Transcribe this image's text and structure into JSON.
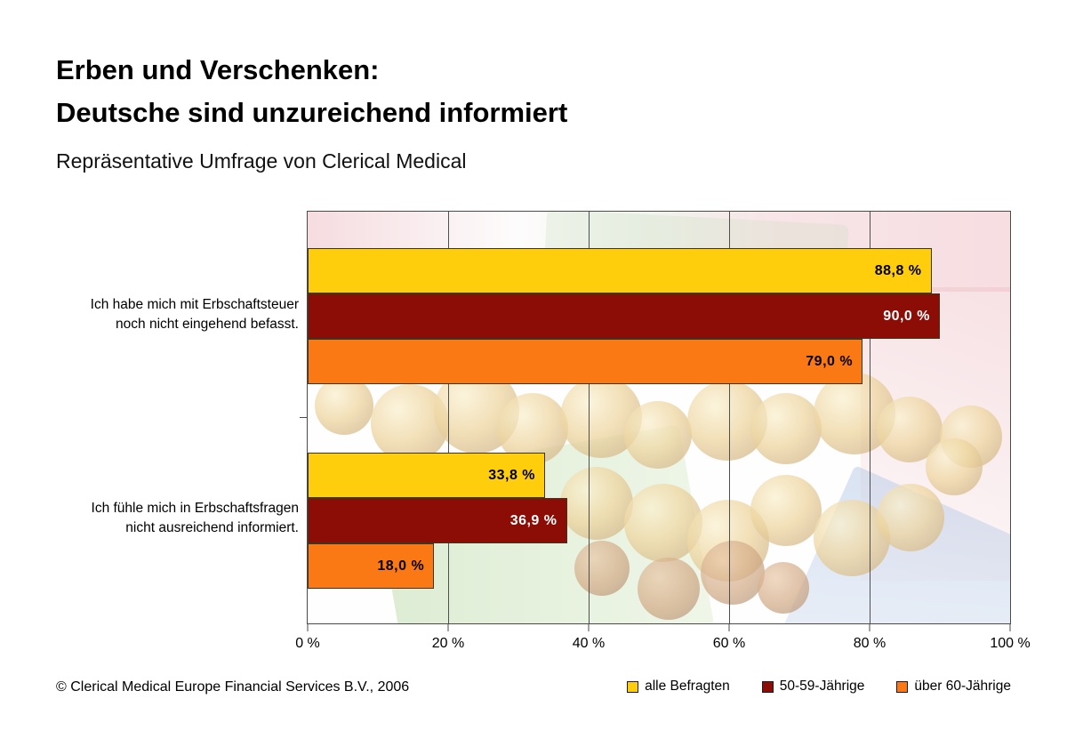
{
  "page": {
    "title_line1": "Erben und Verschenken:",
    "title_line2": "Deutsche sind unzureichend informiert",
    "subtitle": "Repräsentative Umfrage von Clerical Medical",
    "footer": "© Clerical Medical Europe Financial Services B.V., 2006"
  },
  "colors": {
    "series_yellow": "#FECD0C",
    "series_darkred": "#8B0D06",
    "series_orange": "#FA7914",
    "grid": "#4F4F4F",
    "background": "#FFFFFF"
  },
  "chart_data": {
    "type": "bar",
    "orientation": "horizontal",
    "title": "Erben und Verschenken: Deutsche sind unzureichend informiert",
    "subtitle": "Repräsentative Umfrage von Clerical Medical",
    "categories": [
      "Ich habe mich mit Erbschaftsteuer\nnoch nicht eingehend befasst.",
      "Ich fühle mich in Erbschaftsfragen\nnicht ausreichend informiert."
    ],
    "series": [
      {
        "name": "alle Befragten",
        "color": "#FECD0C",
        "label_color": "#000000",
        "values": [
          88.8,
          33.8
        ],
        "value_labels": [
          "88,8 %",
          "33,8 %"
        ]
      },
      {
        "name": "50-59-Jährige",
        "color": "#8B0D06",
        "label_color": "#FFFFFF",
        "values": [
          90.0,
          36.9
        ],
        "value_labels": [
          "90,0 %",
          "36,9 %"
        ]
      },
      {
        "name": "über 60-Jährige",
        "color": "#FA7914",
        "label_color": "#000000",
        "values": [
          79.0,
          18.0
        ],
        "value_labels": [
          "79,0 %",
          "18,0 %"
        ]
      }
    ],
    "xlim": [
      0,
      100
    ],
    "x_tick_values": [
      0,
      20,
      40,
      60,
      80,
      100
    ],
    "x_tick_labels": [
      "0 %",
      "20 %",
      "40 %",
      "60 %",
      "80 %",
      "100 %"
    ],
    "grid": true,
    "legend_position": "bottom-right"
  }
}
